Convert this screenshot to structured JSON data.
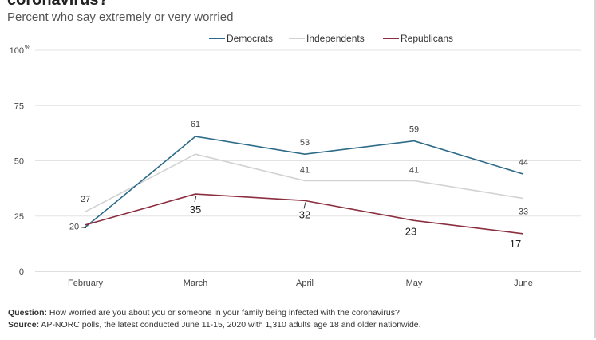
{
  "title": "coronavirus?",
  "subtitle": "Percent who say extremely or very worried",
  "footnote": {
    "question_label": "Question:",
    "question_text": " How worried are you about you or someone in your family being infected with the coronavirus?",
    "source_label": "Source:",
    "source_text": " AP-NORC polls, the latest conducted June 11-15, 2020 with 1,310 adults age 18 and older nationwide."
  },
  "chart_data": {
    "type": "line",
    "x": [
      "February",
      "March",
      "April",
      "May",
      "June"
    ],
    "ylim": [
      0,
      100
    ],
    "yticks": [
      0,
      25,
      50,
      75,
      100
    ],
    "y_unit": "%",
    "legend_position": "top",
    "series": [
      {
        "name": "Democrats",
        "color": "#2e6b88",
        "values": [
          20,
          61,
          53,
          59,
          44
        ]
      },
      {
        "name": "Independents",
        "color": "#d2d2d2",
        "values": [
          27,
          53,
          41,
          41,
          33
        ]
      },
      {
        "name": "Republicans",
        "color": "#8b2e3f",
        "values": [
          21,
          35,
          32,
          23,
          17
        ]
      }
    ],
    "data_labels": {
      "Democrats": [
        "20",
        "61",
        "53",
        "59",
        "44"
      ],
      "Independents": [
        "27",
        "",
        "41",
        "41",
        "33"
      ],
      "Republicans": [
        "",
        "35",
        "32",
        "23",
        "17"
      ]
    }
  }
}
